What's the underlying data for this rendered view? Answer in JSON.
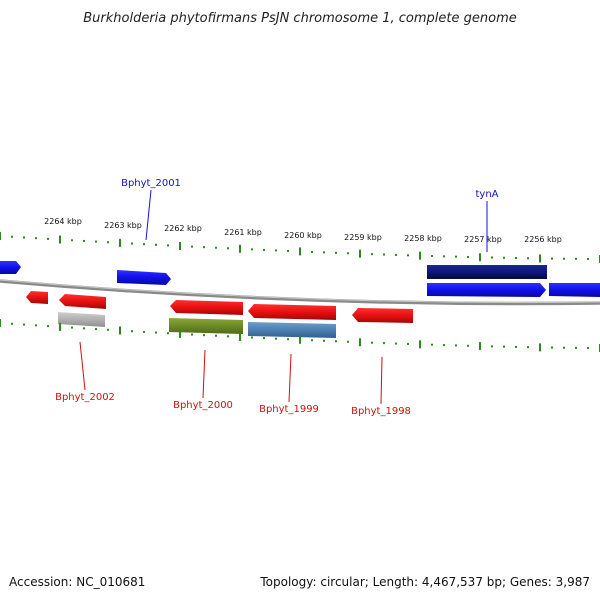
{
  "title": "Burkholderia phytofirmans PsJN chromosome 1, complete genome",
  "footer": {
    "accession": "Accession: NC_010681",
    "summary": "Topology: circular; Length: 4,467,537 bp; Genes: 3,987"
  },
  "scale": {
    "ticks": [
      "2264 kbp",
      "2263 kbp",
      "2262 kbp",
      "2261 kbp",
      "2260 kbp",
      "2259 kbp",
      "2258 kbp",
      "2257 kbp",
      "2256 kbp"
    ]
  },
  "labels": {
    "Bphyt_2001": "Bphyt_2001",
    "tynA": "tynA",
    "Bphyt_2002": "Bphyt_2002",
    "Bphyt_2000": "Bphyt_2000",
    "Bphyt_1999": "Bphyt_1999",
    "Bphyt_1998": "Bphyt_1998"
  },
  "colors": {
    "forward_gene": "#1010e8",
    "reverse_gene": "#e81010",
    "dark_gene": "#0a1470",
    "grey_gene": "#b0b0b0",
    "green_gene": "#6e8a28",
    "steel_gene": "#4a7fb0",
    "tick_green": "#2a8a1a",
    "backbone": "#8a8a8a"
  }
}
